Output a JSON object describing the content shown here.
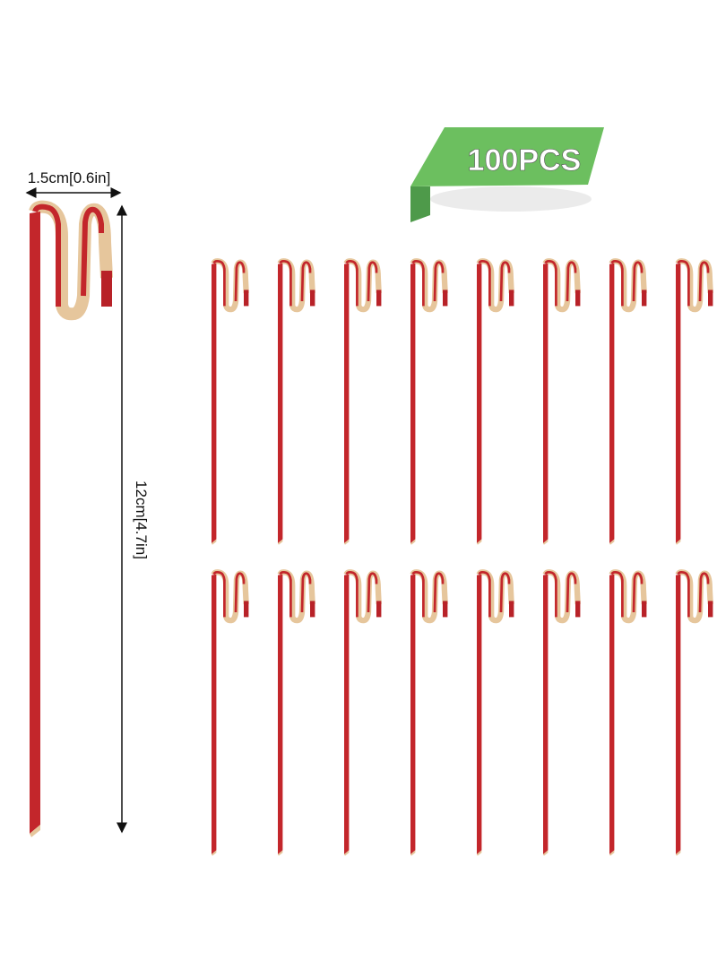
{
  "badge": "100PCS",
  "width_label": "1.5cm[0.6in]",
  "length_label": "12cm[4.7in]"
}
